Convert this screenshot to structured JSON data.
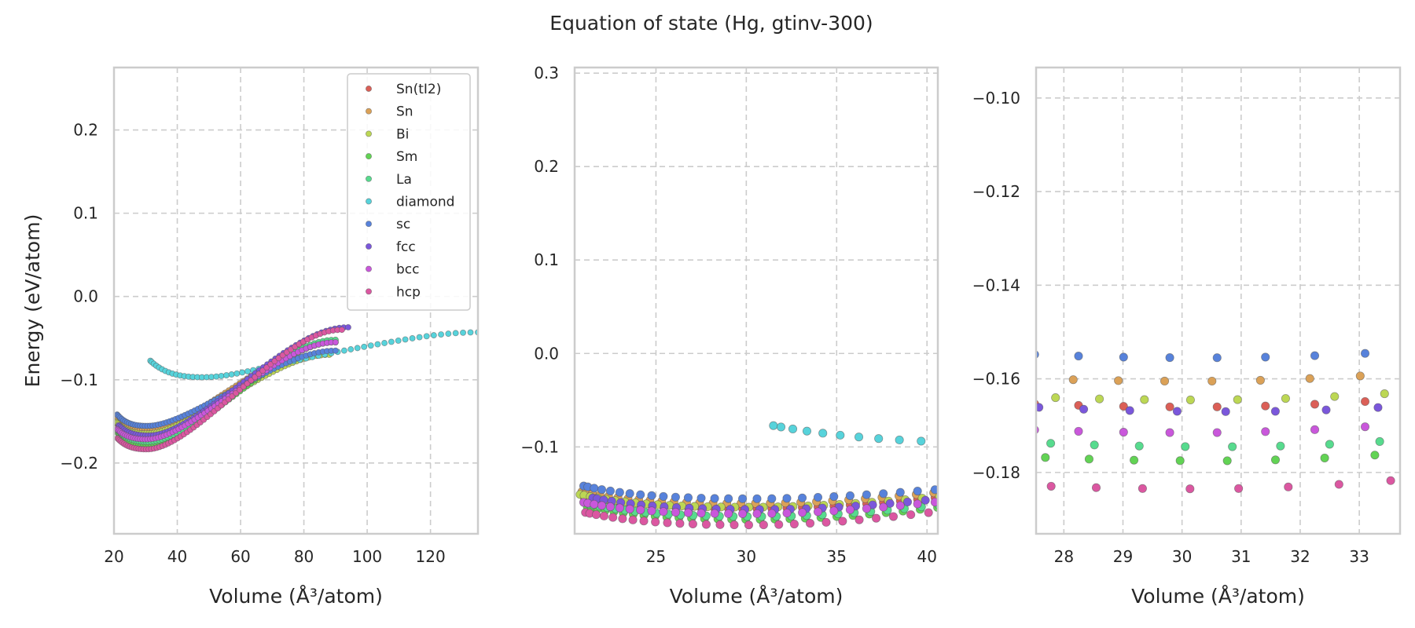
{
  "figure": {
    "title": "Equation of state (Hg, gtinv-300)"
  },
  "chart_data": {
    "type": "scatter",
    "title": "Equation of state (Hg, gtinv-300)",
    "legend": {
      "placement": "top-right",
      "panel": 0,
      "entries": [
        "Sn(tI2)",
        "Sn",
        "Bi",
        "Sm",
        "La",
        "diamond",
        "sc",
        "fcc",
        "bcc",
        "hcp"
      ]
    },
    "series_styles": [
      {
        "name": "Sn(tI2)",
        "color": "#db5f57"
      },
      {
        "name": "Sn",
        "color": "#dba157"
      },
      {
        "name": "Bi",
        "color": "#bcd754"
      },
      {
        "name": "Sm",
        "color": "#62d354"
      },
      {
        "name": "La",
        "color": "#57db8e"
      },
      {
        "name": "diamond",
        "color": "#57d3db"
      },
      {
        "name": "sc",
        "color": "#5782db"
      },
      {
        "name": "fcc",
        "color": "#7a57db"
      },
      {
        "name": "bcc",
        "color": "#c957db"
      },
      {
        "name": "hcp",
        "color": "#db57a1"
      }
    ],
    "panels": [
      {
        "xlabel": "Volume (Å³/atom)",
        "ylabel": "Energy (eV/atom)",
        "xlim": [
          20,
          135
        ],
        "ylim": [
          -0.285,
          0.275
        ],
        "xticks": [
          20,
          40,
          60,
          80,
          100,
          120
        ],
        "xtick_labels": [
          "20",
          "40",
          "60",
          "80",
          "100",
          "120"
        ],
        "yticks": [
          -0.2,
          -0.1,
          0.0,
          0.1,
          0.2
        ],
        "ytick_labels": [
          "−0.2",
          "−0.1",
          "0.0",
          "0.1",
          "0.2"
        ],
        "grid": true
      },
      {
        "xlabel": "Volume (Å³/atom)",
        "ylabel": "",
        "xlim": [
          20.5,
          40.6
        ],
        "ylim": [
          -0.193,
          0.306
        ],
        "xticks": [
          25,
          30,
          35,
          40
        ],
        "xtick_labels": [
          "25",
          "30",
          "35",
          "40"
        ],
        "yticks": [
          -0.1,
          0.0,
          0.1,
          0.2,
          0.3
        ],
        "ytick_labels": [
          "−0.1",
          "0.0",
          "0.1",
          "0.2",
          "0.3"
        ],
        "grid": true
      },
      {
        "xlabel": "Volume (Å³/atom)",
        "ylabel": "",
        "xlim": [
          27.53,
          33.69
        ],
        "ylim": [
          -0.1931,
          -0.0935
        ],
        "xticks": [
          28,
          29,
          30,
          31,
          32,
          33
        ],
        "xtick_labels": [
          "28",
          "29",
          "30",
          "31",
          "32",
          "33"
        ],
        "yticks": [
          -0.18,
          -0.16,
          -0.14,
          -0.12,
          -0.1
        ],
        "ytick_labels": [
          "−0.18",
          "−0.16",
          "−0.14",
          "−0.12",
          "−0.10"
        ],
        "grid": true
      }
    ],
    "series": [
      {
        "name": "Sn(tI2)",
        "model": {
          "e0": -0.166,
          "v0": 30.3,
          "b": 0.0042,
          "bp": 5.2,
          "tail_v": 90,
          "tail_e": -0.055,
          "vmin": 21.0,
          "vmax": 90,
          "n": 70
        }
      },
      {
        "name": "Sn",
        "model": {
          "e0": -0.1605,
          "v0": 30.2,
          "b": 0.004,
          "bp": 5.4,
          "tail_v": 90,
          "tail_e": -0.053,
          "vmin": 20.9,
          "vmax": 90,
          "n": 70
        }
      },
      {
        "name": "Bi",
        "model": {
          "e0": -0.1645,
          "v0": 30.3,
          "b": 0.004,
          "bp": 5.6,
          "tail_v": 88,
          "tail_e": -0.07,
          "vmin": 20.8,
          "vmax": 88,
          "n": 70
        }
      },
      {
        "name": "Sm",
        "model": {
          "e0": -0.1775,
          "v0": 30.5,
          "b": 0.0043,
          "bp": 5.5,
          "tail_v": 90,
          "tail_e": -0.055,
          "vmin": 21.2,
          "vmax": 90,
          "n": 70
        }
      },
      {
        "name": "La",
        "model": {
          "e0": -0.1745,
          "v0": 30.7,
          "b": 0.0042,
          "bp": 5.5,
          "tail_v": 90,
          "tail_e": -0.052,
          "vmin": 21.3,
          "vmax": 90,
          "n": 70
        }
      },
      {
        "name": "diamond",
        "model": {
          "e0": -0.097,
          "v0": 48.0,
          "b": 0.003,
          "bp": 5.0,
          "tail_v": 135,
          "tail_e": -0.043,
          "vmin": 31.5,
          "vmax": 135,
          "n": 60
        }
      },
      {
        "name": "sc",
        "model": {
          "e0": -0.1555,
          "v0": 30.4,
          "b": 0.004,
          "bp": 6.0,
          "tail_v": 90,
          "tail_e": -0.065,
          "vmin": 21.0,
          "vmax": 90,
          "n": 70
        }
      },
      {
        "name": "fcc",
        "model": {
          "e0": -0.167,
          "v0": 30.9,
          "b": 0.004,
          "bp": 5.4,
          "tail_v": 94,
          "tail_e": -0.037,
          "vmin": 21.5,
          "vmax": 94,
          "n": 70
        }
      },
      {
        "name": "bcc",
        "model": {
          "e0": -0.1715,
          "v0": 30.2,
          "b": 0.0041,
          "bp": 5.2,
          "tail_v": 90,
          "tail_e": -0.055,
          "vmin": 21.0,
          "vmax": 90,
          "n": 70
        }
      },
      {
        "name": "hcp",
        "model": {
          "e0": -0.1835,
          "v0": 30.3,
          "b": 0.0045,
          "bp": 5.2,
          "tail_v": 92,
          "tail_e": -0.04,
          "vmin": 21.1,
          "vmax": 92,
          "n": 70
        }
      }
    ]
  }
}
